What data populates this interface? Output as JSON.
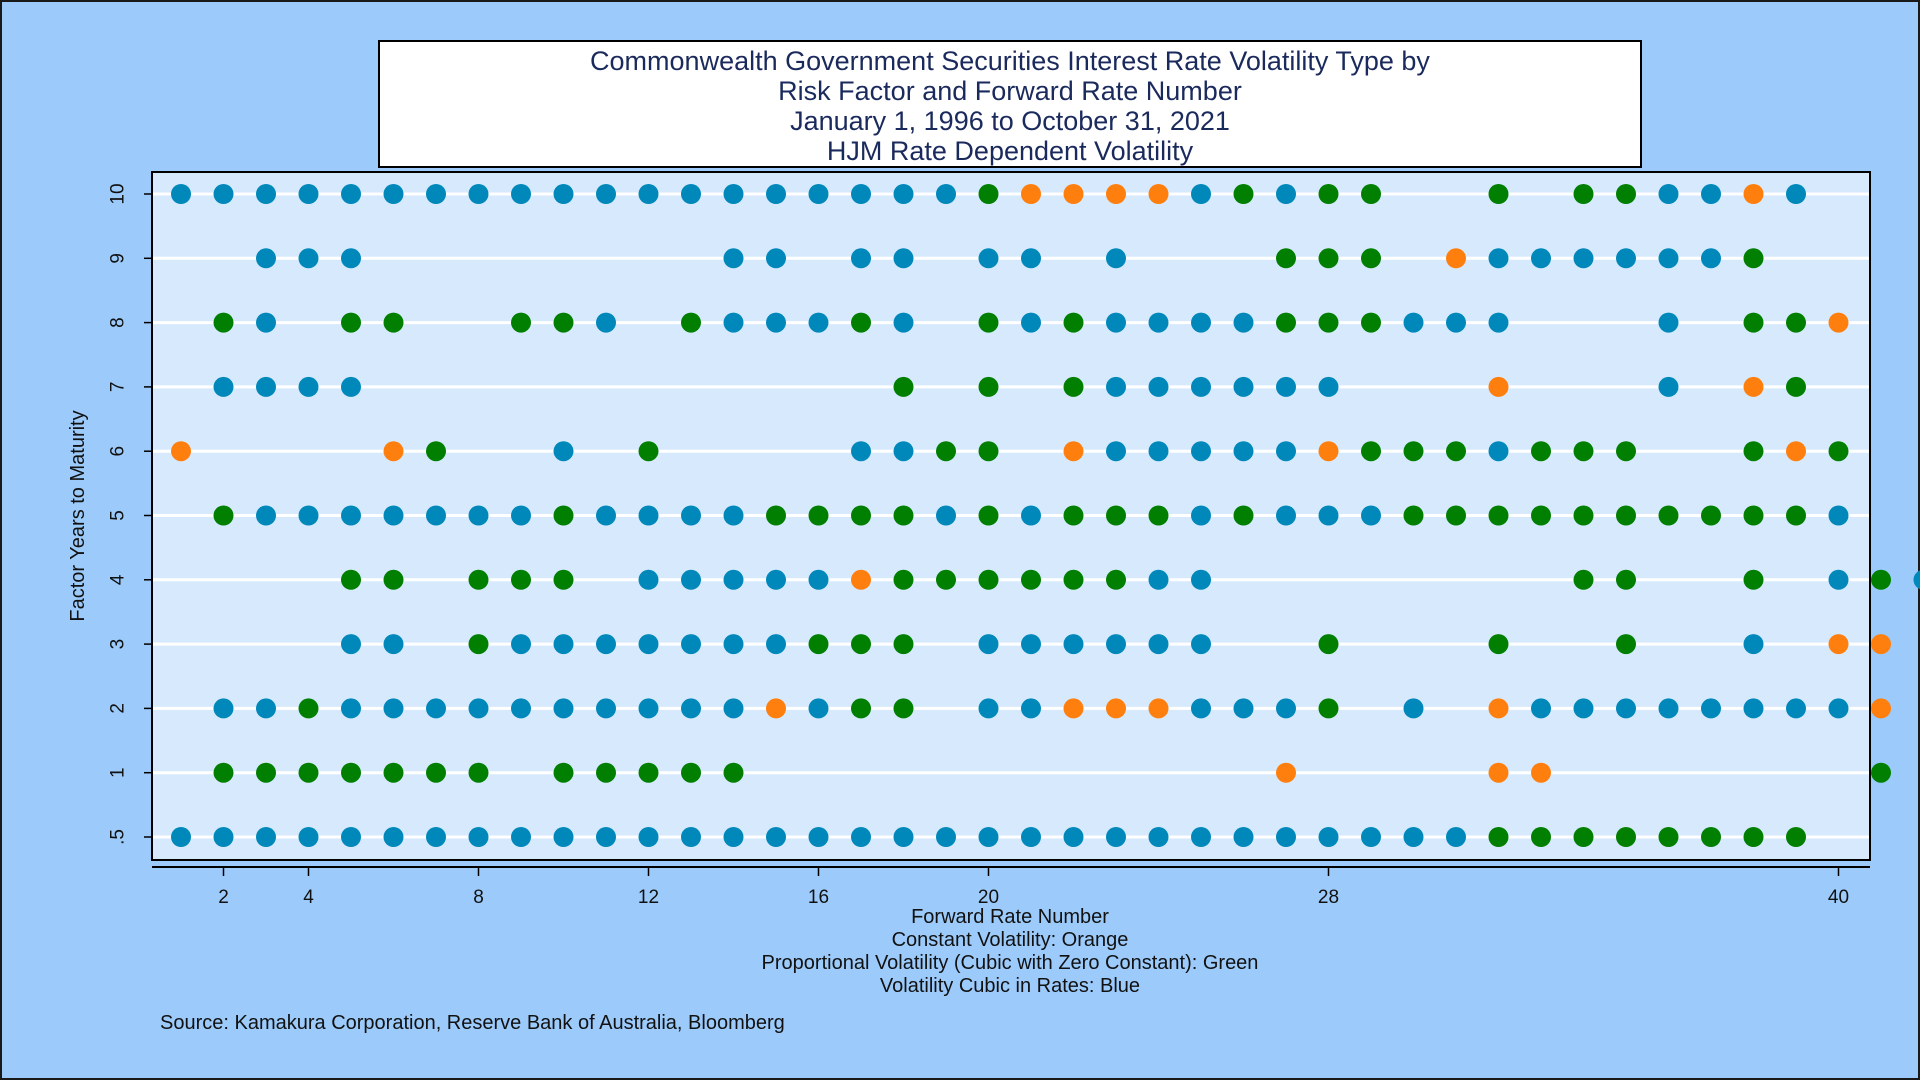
{
  "chart_data": {
    "type": "scatter",
    "title_lines": [
      "Commonwealth Government Securities Interest Rate Volatility Type by",
      "Risk Factor and Forward Rate Number",
      "January 1, 1996 to October 31, 2021",
      "HJM Rate Dependent Volatility"
    ],
    "xlabel": "Forward Rate Number",
    "ylabel": "Factor Years to Maturity",
    "legend_lines": [
      "Constant Volatility: Orange",
      "Proportional Volatility (Cubic with Zero Constant): Green",
      "Volatility Cubic in Rates: Blue"
    ],
    "source": "Source: Kamakura Corporation, Reserve Bank of Australia, Bloomberg",
    "x_ticks": [
      "2",
      "4",
      "8",
      "12",
      "16",
      "20",
      "28",
      "40"
    ],
    "y_categories": [
      ".5",
      "1",
      "2",
      "3",
      "4",
      "5",
      "6",
      "7",
      "8",
      "9",
      "10"
    ],
    "grid": true,
    "colors": {
      "C": "#ff7f0e",
      "P": "#007f00",
      "B": "#0088bb",
      "plot_bg": "#d7eafd",
      "page_bg": "#9ccbfb"
    },
    "volatility_types": {
      "C": "Constant Volatility",
      "P": "Proportional Volatility",
      "B": "Volatility Cubic in Rates"
    },
    "series_by_factor": {
      "10": "BBBBBBBBBBBBBBBBBBBPCCCCBPBPP__P_PPBBCB",
      "9": "__BBB________BB_BB_BB_B___PPP_CBBBBBBP_",
      "8": "_PB_PP__PPB_PBBBPB_PBPBBBBPPPBBB___B_PPC",
      "7": "_BBBB____________P_P_PBBBBBB___C___B_CP_",
      "6": "C____CP__B_P____BBPP_CBBBBBCPPPBPPP__PCP",
      "5": "_PBBBBBBBPBBBBPPPPBPBPPPBPBBBPPPPPPPPPPB",
      "4": "____PP_PPP_BBBBBCPPPPPPBB________PP__P_BPB",
      "3": "____BB_PBBBBBBBPPP_BBBBBB__P___P__P__B_CC",
      "2": "_BBPBBBBBBBBBBCBPP_BBCCCBBBP_B_CBBBBBBBBC",
      "1": "_PPPPPPP_PPPPP____________C____CC_______P",
      ".5": "BBBBBBBBBBBBBBBBBBBBBBBBBBBBBBBPPPPPPPP"
    }
  }
}
